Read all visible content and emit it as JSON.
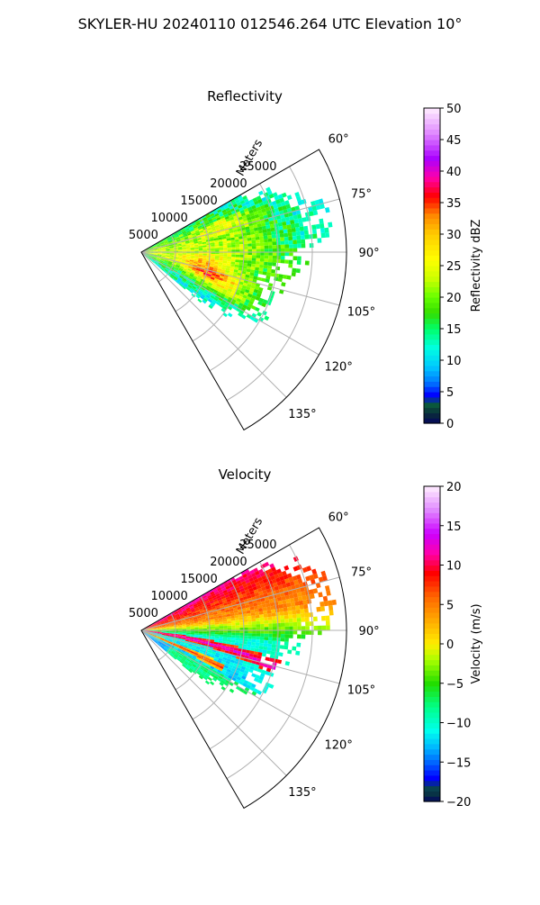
{
  "figure": {
    "title": "SKYLER-HU  20240110  012546.264 UTC Elevation 10°"
  },
  "chart_data": [
    {
      "type": "heatmap",
      "projection": "polar-sector",
      "title": "Reflectivity",
      "radial_label": "Meters",
      "radial_ticks": [
        5000,
        10000,
        15000,
        20000,
        25000
      ],
      "radial_tick_labels": [
        "5000",
        "10000",
        "15000",
        "20000",
        "25000"
      ],
      "r_max": 30000,
      "angle_range_deg": [
        60,
        150
      ],
      "angle_ticks": [
        60,
        75,
        90,
        105,
        120,
        135
      ],
      "angle_tick_labels": [
        "60°",
        "75°",
        "90°",
        "105°",
        "120°",
        "135°"
      ],
      "grid": true,
      "colorbar": {
        "label": "Reflectivity dBZ",
        "vmin": 0,
        "vmax": 50,
        "ticks": [
          0,
          5,
          10,
          15,
          20,
          25,
          30,
          35,
          40,
          45,
          50
        ],
        "tick_labels": [
          "0",
          "5",
          "10",
          "15",
          "20",
          "25",
          "30",
          "35",
          "40",
          "45",
          "50"
        ],
        "stops": [
          {
            "v": 0,
            "c": "#04065e"
          },
          {
            "v": 1.5,
            "c": "#0a2a3a"
          },
          {
            "v": 3,
            "c": "#0a5a3c"
          },
          {
            "v": 4.5,
            "c": "#0000ff"
          },
          {
            "v": 6.5,
            "c": "#0077ff"
          },
          {
            "v": 9,
            "c": "#00c8ff"
          },
          {
            "v": 12,
            "c": "#00ffe0"
          },
          {
            "v": 15,
            "c": "#00ff6a"
          },
          {
            "v": 17.5,
            "c": "#33dd00"
          },
          {
            "v": 20,
            "c": "#66ff00"
          },
          {
            "v": 23,
            "c": "#ccff00"
          },
          {
            "v": 26,
            "c": "#ffff00"
          },
          {
            "v": 30,
            "c": "#ffcc00"
          },
          {
            "v": 33,
            "c": "#ff8800"
          },
          {
            "v": 36,
            "c": "#ff0000"
          },
          {
            "v": 39,
            "c": "#ff00aa"
          },
          {
            "v": 42,
            "c": "#aa00ff"
          },
          {
            "v": 46,
            "c": "#e088ff"
          },
          {
            "v": 50,
            "c": "#ffeeff"
          }
        ]
      },
      "field_blobs": [
        {
          "az": 90,
          "r": 12000,
          "s_az": 30,
          "s_r": 20000,
          "amp": 15
        },
        {
          "az": 108,
          "r": 11000,
          "s_az": 5,
          "s_r": 4500,
          "amp": 14
        },
        {
          "az": 100,
          "r": 9000,
          "s_az": 6,
          "s_r": 3500,
          "amp": 8
        },
        {
          "az": 72,
          "r": 13000,
          "s_az": 5,
          "s_r": 5000,
          "amp": 8
        },
        {
          "az": 115,
          "r": 14000,
          "s_az": 5,
          "s_r": 5000,
          "amp": 8
        }
      ],
      "field_base": 20,
      "echo_extent": [
        {
          "az": 60,
          "r": 18000
        },
        {
          "az": 66,
          "r": 23000
        },
        {
          "az": 75,
          "r": 27500
        },
        {
          "az": 85,
          "r": 28000
        },
        {
          "az": 92,
          "r": 25000
        },
        {
          "az": 102,
          "r": 21000
        },
        {
          "az": 112,
          "r": 22000
        },
        {
          "az": 120,
          "r": 21000
        },
        {
          "az": 126,
          "r": 16000
        },
        {
          "az": 130,
          "r": 11000
        }
      ]
    },
    {
      "type": "heatmap",
      "projection": "polar-sector",
      "title": "Velocity",
      "radial_label": "Meters",
      "radial_ticks": [
        5000,
        10000,
        15000,
        20000,
        25000
      ],
      "radial_tick_labels": [
        "5000",
        "10000",
        "15000",
        "20000",
        "25000"
      ],
      "r_max": 30000,
      "angle_range_deg": [
        60,
        150
      ],
      "angle_ticks": [
        60,
        75,
        90,
        105,
        120,
        135
      ],
      "angle_tick_labels": [
        "60°",
        "75°",
        "90°",
        "105°",
        "120°",
        "135°"
      ],
      "grid": true,
      "colorbar": {
        "label": "Velocity (m/s)",
        "vmin": -20,
        "vmax": 20,
        "ticks": [
          -20,
          -15,
          -10,
          -5,
          0,
          5,
          10,
          15,
          20
        ],
        "tick_labels": [
          "−20",
          "−15",
          "−10",
          "−5",
          "0",
          "5",
          "10",
          "15",
          "20"
        ],
        "stops": [
          {
            "v": -20,
            "c": "#04065e"
          },
          {
            "v": -18.5,
            "c": "#0a4a3a"
          },
          {
            "v": -17,
            "c": "#0000ff"
          },
          {
            "v": -15,
            "c": "#0066ff"
          },
          {
            "v": -13,
            "c": "#00bbff"
          },
          {
            "v": -11,
            "c": "#00ffee"
          },
          {
            "v": -8,
            "c": "#00ff88"
          },
          {
            "v": -5,
            "c": "#22dd00"
          },
          {
            "v": -2,
            "c": "#aaff00"
          },
          {
            "v": 0,
            "c": "#ffee00"
          },
          {
            "v": 3,
            "c": "#ffaa00"
          },
          {
            "v": 6,
            "c": "#ff6600"
          },
          {
            "v": 9,
            "c": "#ff0000"
          },
          {
            "v": 11.5,
            "c": "#ff00aa"
          },
          {
            "v": 14,
            "c": "#cc00ff"
          },
          {
            "v": 17,
            "c": "#e088ff"
          },
          {
            "v": 20,
            "c": "#ffeeff"
          }
        ]
      },
      "echo_extent": [
        {
          "az": 60,
          "r": 18000
        },
        {
          "az": 64,
          "r": 24000
        },
        {
          "az": 72,
          "r": 28000
        },
        {
          "az": 80,
          "r": 28500
        },
        {
          "az": 90,
          "r": 27000
        },
        {
          "az": 100,
          "r": 22000
        },
        {
          "az": 108,
          "r": 21000
        },
        {
          "az": 116,
          "r": 20500
        },
        {
          "az": 122,
          "r": 17000
        },
        {
          "az": 128,
          "r": 13000
        },
        {
          "az": 131,
          "r": 8000
        }
      ]
    }
  ]
}
